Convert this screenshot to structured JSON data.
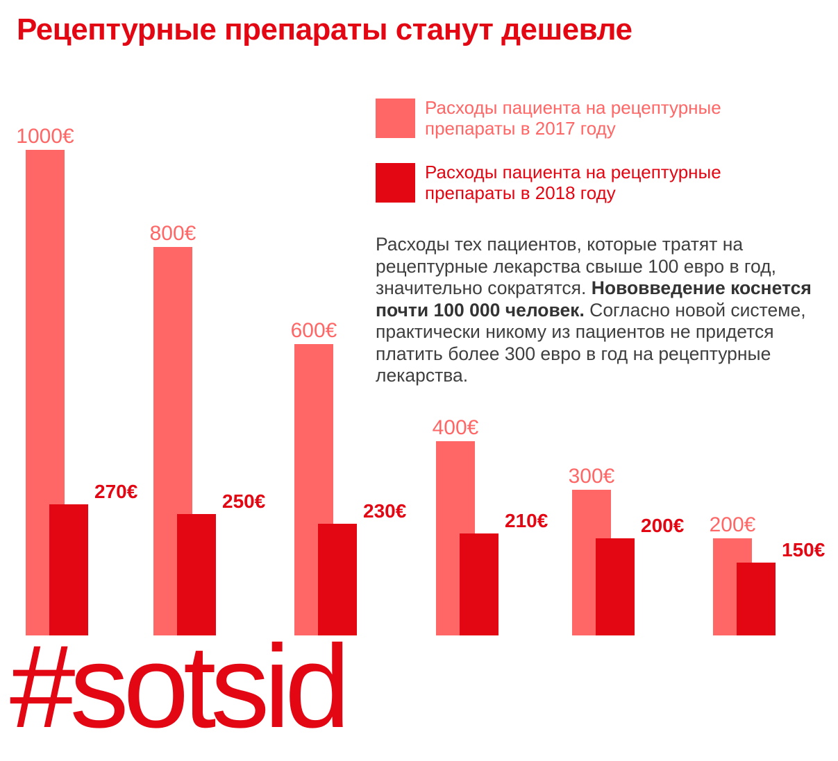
{
  "title": "Рецептурные препараты станут дешевле",
  "legend": [
    {
      "label": "Расходы пациента на рецептурные препараты в 2017 году",
      "color": "#ff6666"
    },
    {
      "label": "Расходы пациента на рецептурные препараты в 2018 году",
      "color": "#e30613"
    }
  ],
  "description": {
    "part1": "Расходы тех пациентов, которые тратят на рецептурные лекарства свыше 100 евро в год, значительно сократятся. ",
    "bold": "Нововведение коснется почти 100 000 человек.",
    "part2": " Согласно новой системе, практически никому из пациентов не придется платить более 300 евро в год на рецептурные лекарства."
  },
  "hashtag": "#sotsid",
  "chart_data": {
    "type": "bar",
    "title": "Рецептурные препараты станут дешевле",
    "unit": "€",
    "series": [
      {
        "name": "Расходы пациента на рецептурные препараты в 2017 году",
        "color": "#ff6666",
        "values": [
          1000,
          800,
          600,
          400,
          300,
          200
        ],
        "labels": [
          "1000€",
          "800€",
          "600€",
          "400€",
          "300€",
          "200€"
        ]
      },
      {
        "name": "Расходы пациента на рецептурные препараты в 2018 году",
        "color": "#e30613",
        "values": [
          270,
          250,
          230,
          210,
          200,
          150
        ],
        "labels": [
          "270€",
          "250€",
          "230€",
          "210€",
          "200€",
          "150€"
        ]
      }
    ],
    "legend": "top-right",
    "grid": false
  }
}
